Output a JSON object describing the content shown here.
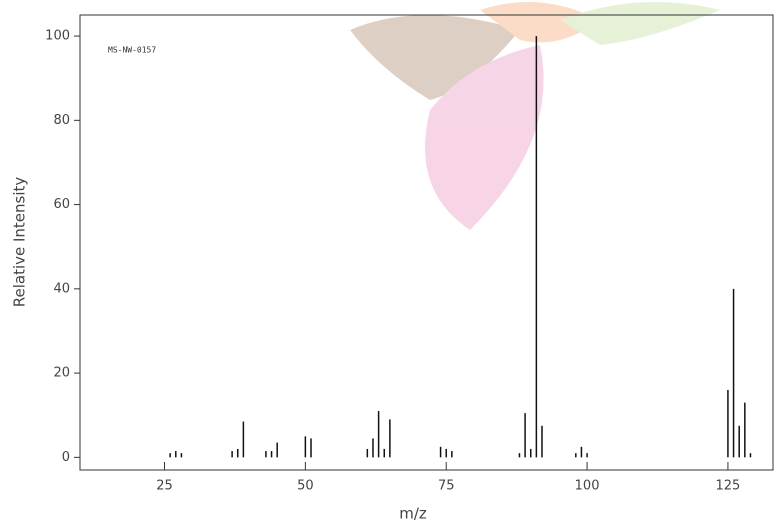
{
  "chart_data": {
    "type": "stem",
    "annotation": "MS-NW-0157",
    "x_label": "m/z",
    "y_label": "Relative Intensity",
    "color": "#111",
    "x": [
      26,
      27,
      28,
      37,
      38,
      39,
      43,
      44,
      45,
      50,
      51,
      61,
      62,
      63,
      64,
      65,
      74,
      75,
      76,
      88,
      89,
      90,
      91,
      92,
      98,
      99,
      100,
      125,
      126,
      127,
      128,
      129
    ],
    "values": [
      1,
      1.5,
      1,
      1.5,
      2,
      8.5,
      1.5,
      1.5,
      3.5,
      5,
      4.5,
      2,
      4.5,
      11,
      2,
      9,
      2.5,
      2,
      1.5,
      1,
      10.5,
      2,
      100,
      7.5,
      1,
      2.5,
      1,
      16,
      40,
      7.5,
      13,
      1
    ],
    "xlim": [
      10,
      133
    ],
    "ylim": [
      -3,
      105
    ],
    "xticks": [
      25,
      50,
      75,
      100,
      125
    ],
    "yticks": [
      0,
      20,
      40,
      60,
      80,
      100
    ]
  }
}
